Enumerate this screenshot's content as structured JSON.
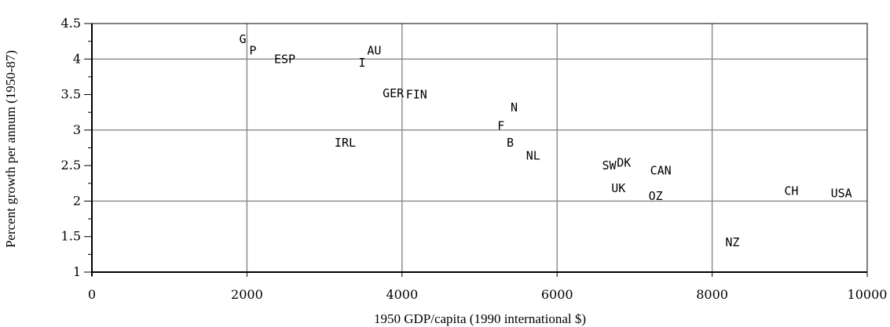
{
  "chart_data": {
    "type": "scatter",
    "xlabel": "1950 GDP/capita (1990 international $)",
    "ylabel": "Percent growth per annum (1950-87)",
    "xlim": [
      0,
      10000
    ],
    "ylim": [
      1,
      4.5
    ],
    "x_ticks": [
      0,
      2000,
      4000,
      6000,
      8000,
      10000
    ],
    "x_tick_labels": [
      "0",
      "2000",
      "4000",
      "6000",
      "8000",
      "10000"
    ],
    "y_ticks": [
      1,
      1.5,
      2,
      2.5,
      3,
      3.5,
      4,
      4.5
    ],
    "y_tick_labels": [
      "1",
      "1.5",
      "2",
      "2.5",
      "3",
      "3.5",
      "4",
      "4.5"
    ],
    "grid": true,
    "points": [
      {
        "label": "G",
        "x": 1900,
        "y": 4.28
      },
      {
        "label": "P",
        "x": 2030,
        "y": 4.12
      },
      {
        "label": "ESP",
        "x": 2350,
        "y": 4.0
      },
      {
        "label": "AU",
        "x": 3550,
        "y": 4.12
      },
      {
        "label": "I",
        "x": 3440,
        "y": 3.95
      },
      {
        "label": "GER",
        "x": 3750,
        "y": 3.52
      },
      {
        "label": "FIN",
        "x": 4050,
        "y": 3.5
      },
      {
        "label": "N",
        "x": 5400,
        "y": 3.32
      },
      {
        "label": "F",
        "x": 5230,
        "y": 3.06
      },
      {
        "label": "IRL",
        "x": 3130,
        "y": 2.82
      },
      {
        "label": "B",
        "x": 5350,
        "y": 2.82
      },
      {
        "label": "NL",
        "x": 5600,
        "y": 2.64
      },
      {
        "label": "SW",
        "x": 6580,
        "y": 2.5
      },
      {
        "label": "DK",
        "x": 6770,
        "y": 2.54
      },
      {
        "label": "CAN",
        "x": 7200,
        "y": 2.43
      },
      {
        "label": "UK",
        "x": 6700,
        "y": 2.18
      },
      {
        "label": "OZ",
        "x": 7180,
        "y": 2.07
      },
      {
        "label": "CH",
        "x": 8930,
        "y": 2.14
      },
      {
        "label": "USA",
        "x": 9530,
        "y": 2.11
      },
      {
        "label": "NZ",
        "x": 8170,
        "y": 1.42
      }
    ]
  }
}
